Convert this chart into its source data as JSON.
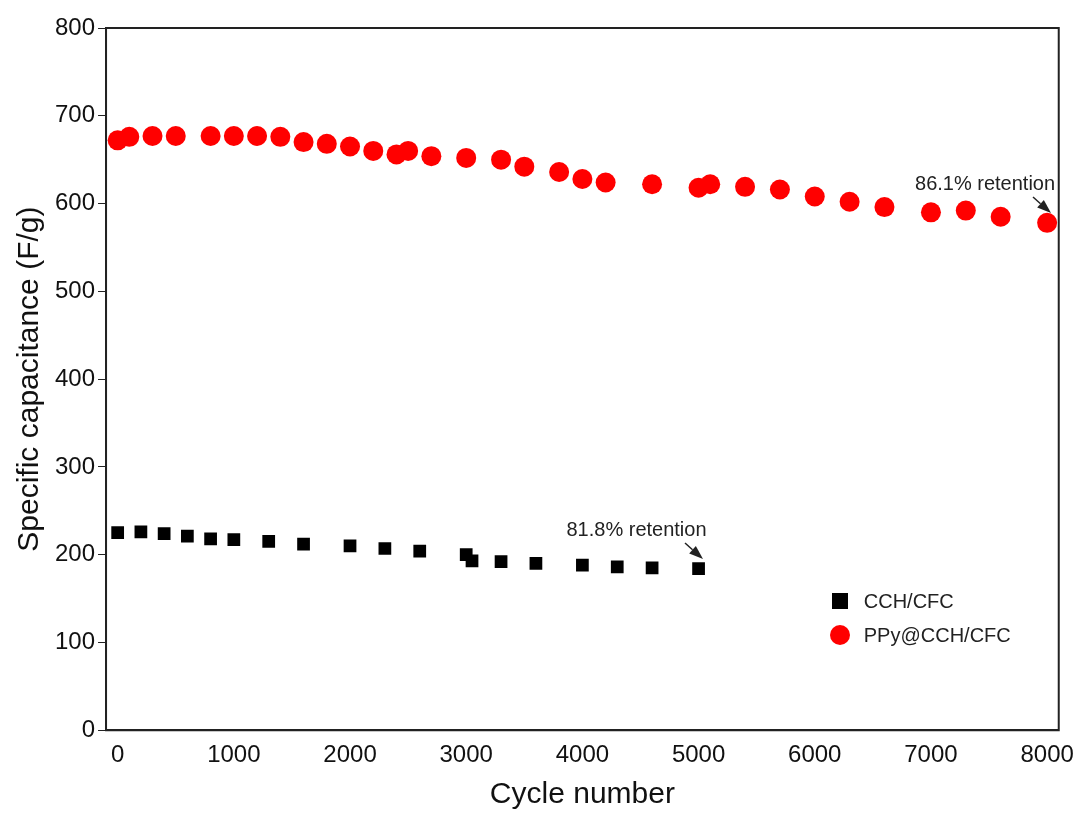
{
  "chart_data": {
    "type": "scatter",
    "xlabel": "Cycle number",
    "ylabel": "Specific capacitance (F/g)",
    "xlim": [
      -100,
      8100
    ],
    "ylim": [
      0,
      800
    ],
    "xticks": [
      0,
      1000,
      2000,
      3000,
      4000,
      5000,
      6000,
      7000,
      8000
    ],
    "yticks": [
      0,
      100,
      200,
      300,
      400,
      500,
      600,
      700,
      800
    ],
    "grid": false,
    "legend": "bottom right",
    "series": [
      {
        "name": "CCH/CFC",
        "color": "#000000",
        "marker": "square",
        "x": [
          0,
          200,
          400,
          600,
          800,
          1000,
          1300,
          1600,
          2000,
          2300,
          2600,
          3000,
          3050,
          3300,
          3600,
          4000,
          4300,
          4600,
          5000
        ],
        "values": [
          225,
          226,
          224,
          221,
          218,
          217,
          215,
          212,
          210,
          207,
          204,
          200,
          193,
          192,
          190,
          188,
          186,
          185,
          184
        ]
      },
      {
        "name": "PPy@CCH/CFC",
        "color": "#ff0000",
        "marker": "circle",
        "x": [
          0,
          100,
          300,
          500,
          800,
          1000,
          1200,
          1400,
          1600,
          1800,
          2000,
          2200,
          2400,
          2500,
          2700,
          3000,
          3300,
          3500,
          3800,
          4000,
          4200,
          4600,
          5000,
          5100,
          5400,
          5700,
          6000,
          6300,
          6600,
          7000,
          7300,
          7600,
          8000
        ],
        "values": [
          672,
          676,
          677,
          677,
          677,
          677,
          677,
          676,
          670,
          668,
          665,
          660,
          656,
          660,
          654,
          652,
          650,
          642,
          636,
          628,
          624,
          622,
          618,
          622,
          619,
          616,
          608,
          602,
          596,
          590,
          592,
          585,
          578
        ]
      }
    ],
    "annotations": [
      {
        "text": "86.1% retention",
        "x": 8000,
        "y": 578
      },
      {
        "text": "81.8% retention",
        "x": 5000,
        "y": 184
      }
    ]
  }
}
